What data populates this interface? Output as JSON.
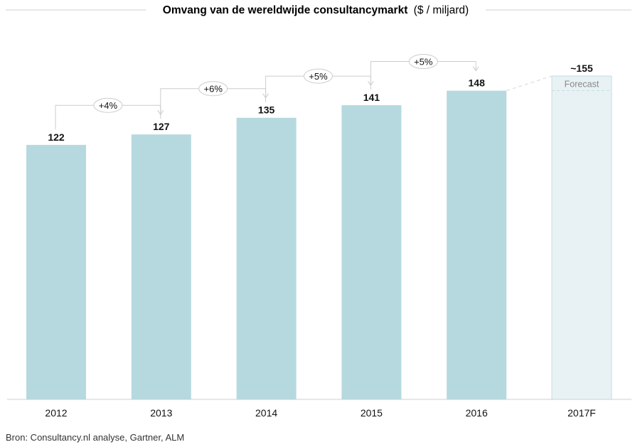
{
  "chart_data": {
    "type": "bar",
    "title": "Omvang van de wereldwijde consultancymarkt",
    "title_unit": "($ / miljard)",
    "categories": [
      "2012",
      "2013",
      "2014",
      "2015",
      "2016",
      "2017F"
    ],
    "values": [
      122,
      127,
      135,
      141,
      148,
      155
    ],
    "value_labels": [
      "122",
      "127",
      "135",
      "141",
      "148",
      "~155"
    ],
    "forecast": {
      "category": "2017F",
      "label": "Forecast",
      "value": 155
    },
    "growth_labels": [
      {
        "from": "2012",
        "to": "2013",
        "label": "+4%"
      },
      {
        "from": "2013",
        "to": "2014",
        "label": "+6%"
      },
      {
        "from": "2014",
        "to": "2015",
        "label": "+5%"
      },
      {
        "from": "2015",
        "to": "2016",
        "label": "+5%"
      }
    ],
    "ylim": [
      0,
      155
    ],
    "grid": false,
    "xlabel": "",
    "ylabel": ""
  },
  "colors": {
    "bar": "#b5d9df",
    "forecast_fill": "#e8f2f4",
    "forecast_stroke": "#c4dde1",
    "connector": "#cccccc",
    "axis": "#cfcfcf"
  },
  "source": "Bron: Consultancy.nl analyse, Gartner, ALM"
}
